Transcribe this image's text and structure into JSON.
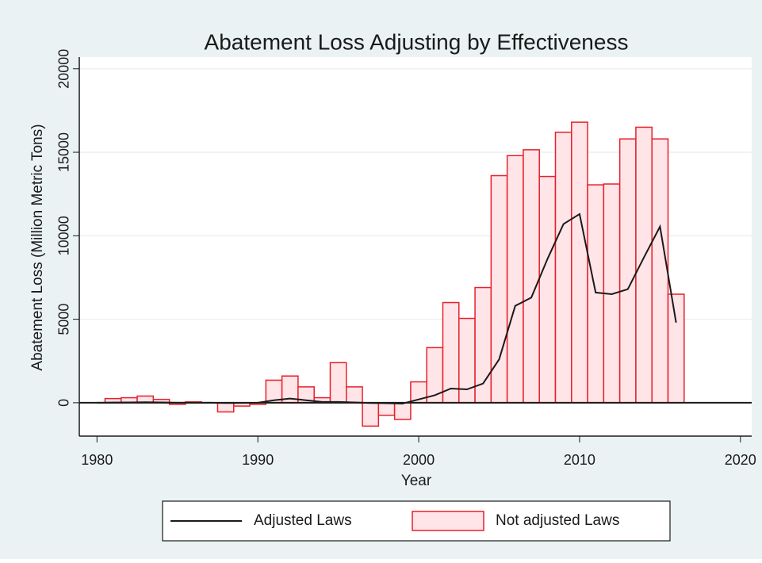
{
  "chart_data": {
    "type": "bar",
    "title": "Abatement Loss Adjusting by Effectiveness",
    "xlabel": "Year",
    "ylabel": "Abatement Loss (Million Metric Tons)",
    "x": [
      1980,
      1981,
      1982,
      1983,
      1984,
      1985,
      1986,
      1987,
      1988,
      1989,
      1990,
      1991,
      1992,
      1993,
      1994,
      1995,
      1996,
      1997,
      1998,
      1999,
      2000,
      2001,
      2002,
      2003,
      2004,
      2005,
      2006,
      2007,
      2008,
      2009,
      2010,
      2011,
      2012,
      2013,
      2014,
      2015,
      2016
    ],
    "series": [
      {
        "name": "Adjusted Laws",
        "type": "line",
        "color": "#1a1a1a",
        "values": [
          0,
          10,
          20,
          30,
          20,
          0,
          0,
          0,
          -20,
          -10,
          0,
          150,
          250,
          150,
          50,
          50,
          20,
          -20,
          -30,
          -50,
          200,
          450,
          850,
          800,
          1150,
          2600,
          5800,
          6300,
          8600,
          10700,
          11300,
          6600,
          6500,
          6800,
          8700,
          10550,
          4800
        ]
      },
      {
        "name": "Not adjusted Laws",
        "type": "bar",
        "color": "#e8202a",
        "fill": "#ffe4e8",
        "values": [
          0,
          250,
          300,
          400,
          200,
          -100,
          50,
          0,
          -550,
          -200,
          -100,
          1350,
          1600,
          950,
          300,
          2400,
          950,
          -1400,
          -750,
          -1000,
          1250,
          3300,
          6000,
          5050,
          6900,
          13600,
          14800,
          15150,
          13550,
          16200,
          16800,
          13050,
          13100,
          15800,
          16500,
          15800,
          6500
        ]
      }
    ],
    "xlim": [
      1978.9,
      2020.7
    ],
    "xticks": [
      1980,
      1990,
      2000,
      2010,
      2020
    ],
    "ylim": [
      -2000,
      20700
    ],
    "yticks": [
      0,
      5000,
      10000,
      15000,
      20000
    ],
    "grid": true,
    "reference_line": 0,
    "legend": "bottom"
  }
}
